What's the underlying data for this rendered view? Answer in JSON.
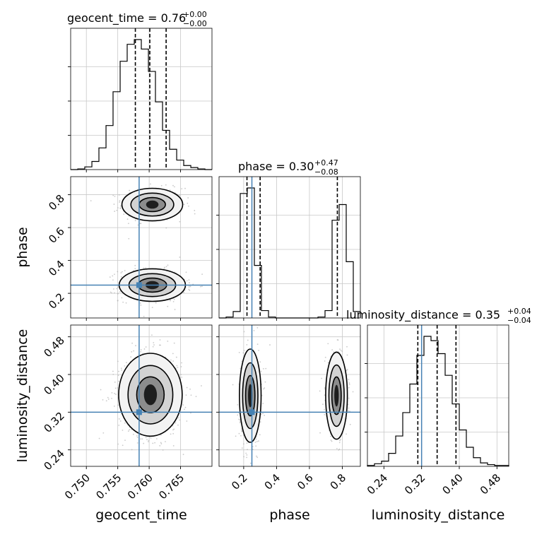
{
  "chart_data": {
    "type": "corner",
    "parameters": [
      "geocent_time",
      "phase",
      "luminosity_distance"
    ],
    "titles": [
      {
        "param": "geocent_time",
        "text": "geocent_time = 0.76",
        "sup": "+0.00",
        "sub": "−0.00"
      },
      {
        "param": "phase",
        "text": "phase = 0.30",
        "sup": "+0.47",
        "sub": "−0.08"
      },
      {
        "param": "luminosity_distance",
        "text": "luminosity_distance = 0.35",
        "sup": "+0.04",
        "sub": "−0.04"
      }
    ],
    "ranges": {
      "geocent_time": [
        0.7475,
        0.77
      ],
      "phase": [
        0.05,
        0.91
      ],
      "luminosity_distance": [
        0.205,
        0.505
      ]
    },
    "ticks": {
      "geocent_time": [
        "0.750",
        "0.755",
        "0.760",
        "0.765"
      ],
      "phase": [
        "0.2",
        "0.4",
        "0.6",
        "0.8"
      ],
      "luminosity_distance": [
        "0.24",
        "0.32",
        "0.40",
        "0.48"
      ]
    },
    "truths": {
      "geocent_time": 0.7584,
      "phase": 0.25,
      "luminosity_distance": 0.32
    },
    "quantiles": {
      "geocent_time": [
        0.7578,
        0.7601,
        0.7627
      ],
      "phase": [
        0.22,
        0.3,
        0.77
      ],
      "luminosity_distance": [
        0.312,
        0.353,
        0.393
      ]
    },
    "histograms": {
      "geocent_time": {
        "bin_edges": [
          0.7475,
          0.74863,
          0.74975,
          0.75088,
          0.752,
          0.75313,
          0.75425,
          0.75538,
          0.7565,
          0.75763,
          0.75875,
          0.75988,
          0.761,
          0.76213,
          0.76325,
          0.76438,
          0.7655,
          0.76663,
          0.76775,
          0.76888,
          0.77
        ],
        "counts": [
          0,
          1,
          4,
          12,
          32,
          65,
          115,
          160,
          185,
          192,
          178,
          145,
          100,
          58,
          30,
          14,
          6,
          3,
          1,
          0
        ]
      },
      "phase": {
        "bin_edges": [
          0.05,
          0.093,
          0.136,
          0.179,
          0.222,
          0.265,
          0.308,
          0.351,
          0.394,
          0.437,
          0.48,
          0.523,
          0.566,
          0.609,
          0.652,
          0.695,
          0.738,
          0.781,
          0.824,
          0.867,
          0.91
        ],
        "counts": [
          0,
          1,
          7,
          135,
          141,
          57,
          8,
          1,
          0,
          0,
          0,
          0,
          0,
          0,
          1,
          8,
          106,
          123,
          61,
          7
        ]
      },
      "luminosity_distance": {
        "bin_edges": [
          0.205,
          0.22,
          0.235,
          0.25,
          0.265,
          0.28,
          0.295,
          0.31,
          0.325,
          0.34,
          0.355,
          0.37,
          0.385,
          0.4,
          0.415,
          0.43,
          0.445,
          0.46,
          0.475,
          0.49,
          0.505
        ],
        "counts": [
          1,
          3,
          6,
          15,
          35,
          62,
          95,
          128,
          150,
          145,
          130,
          105,
          72,
          42,
          22,
          10,
          4,
          2,
          1,
          1
        ]
      }
    },
    "joint_modes": [
      {
        "x": "geocent_time",
        "y": "phase",
        "cx": 0.7605,
        "cy": 0.74,
        "sx": 0.0022,
        "sy": 0.045,
        "n": 450
      },
      {
        "x": "geocent_time",
        "y": "phase",
        "cx": 0.7605,
        "cy": 0.25,
        "sx": 0.0024,
        "sy": 0.045,
        "n": 520
      },
      {
        "x": "geocent_time",
        "y": "luminosity_distance",
        "cx": 0.7602,
        "cy": 0.357,
        "sx": 0.0023,
        "sy": 0.04,
        "n": 900
      },
      {
        "x": "phase",
        "y": "luminosity_distance",
        "cx": 0.24,
        "cy": 0.355,
        "sx": 0.03,
        "sy": 0.045,
        "n": 480
      },
      {
        "x": "phase",
        "y": "luminosity_distance",
        "cx": 0.765,
        "cy": 0.355,
        "sx": 0.03,
        "sy": 0.042,
        "n": 420
      }
    ],
    "colors": {
      "truth": "#4682b4",
      "points": "#b4b4b4",
      "hist": "#000000",
      "grid": "#c8c8c8"
    },
    "grid": true
  }
}
